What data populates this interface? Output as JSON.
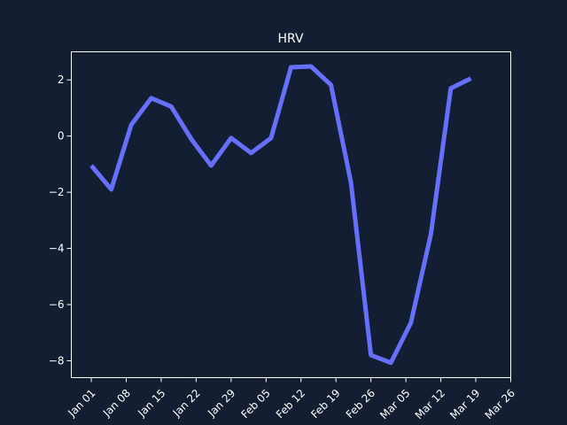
{
  "chart_data": {
    "type": "line",
    "title": "HRV",
    "xlabel": "",
    "ylabel": "",
    "ylim": [
      -8.6,
      3.0
    ],
    "xlim_days": [
      -4,
      84
    ],
    "x_ticks": [
      {
        "label": "Jan 01",
        "day": 0
      },
      {
        "label": "Jan 08",
        "day": 7
      },
      {
        "label": "Jan 15",
        "day": 14
      },
      {
        "label": "Jan 22",
        "day": 21
      },
      {
        "label": "Jan 29",
        "day": 28
      },
      {
        "label": "Feb 05",
        "day": 35
      },
      {
        "label": "Feb 12",
        "day": 42
      },
      {
        "label": "Feb 19",
        "day": 49
      },
      {
        "label": "Feb 26",
        "day": 56
      },
      {
        "label": "Mar 05",
        "day": 63
      },
      {
        "label": "Mar 12",
        "day": 70
      },
      {
        "label": "Mar 19",
        "day": 77
      },
      {
        "label": "Mar 26",
        "day": 84
      }
    ],
    "y_ticks": [
      {
        "label": "2",
        "value": 2
      },
      {
        "label": "0",
        "value": 0
      },
      {
        "label": "−2",
        "value": -2
      },
      {
        "label": "−4",
        "value": -4
      },
      {
        "label": "−6",
        "value": -6
      },
      {
        "label": "−8",
        "value": -8
      }
    ],
    "series": [
      {
        "name": "HRV",
        "color": "#6670ff",
        "points": [
          {
            "day": 0,
            "value": -1.05
          },
          {
            "day": 4,
            "value": -1.9
          },
          {
            "day": 8,
            "value": 0.4
          },
          {
            "day": 12,
            "value": 1.35
          },
          {
            "day": 16,
            "value": 1.05
          },
          {
            "day": 20,
            "value": -0.1
          },
          {
            "day": 24,
            "value": -1.05
          },
          {
            "day": 28,
            "value": -0.07
          },
          {
            "day": 32,
            "value": -0.6
          },
          {
            "day": 36,
            "value": -0.07
          },
          {
            "day": 40,
            "value": 2.45
          },
          {
            "day": 44,
            "value": 2.48
          },
          {
            "day": 48,
            "value": 1.82
          },
          {
            "day": 52,
            "value": -1.65
          },
          {
            "day": 56,
            "value": -7.8
          },
          {
            "day": 60,
            "value": -8.07
          },
          {
            "day": 64,
            "value": -6.65
          },
          {
            "day": 68,
            "value": -3.5
          },
          {
            "day": 72,
            "value": 1.7
          },
          {
            "day": 76,
            "value": 2.05
          }
        ]
      }
    ]
  }
}
